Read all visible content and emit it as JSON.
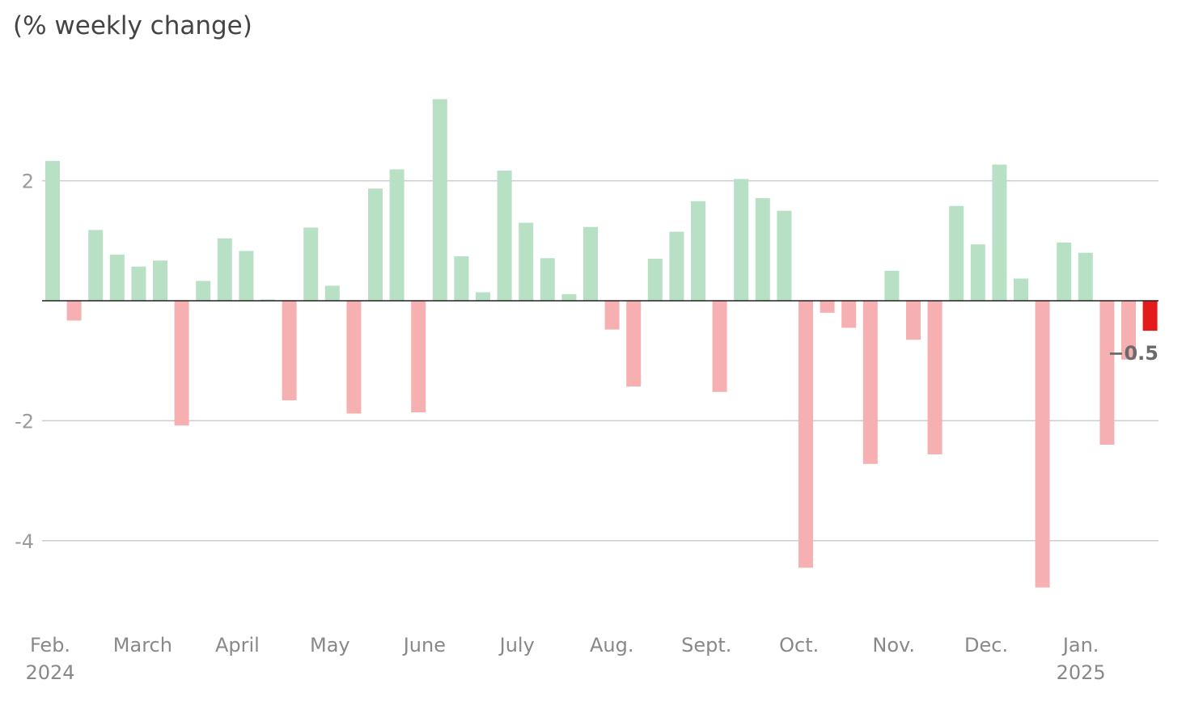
{
  "chart_data": {
    "type": "bar",
    "title": "",
    "subtitle": "(% weekly change)",
    "xlabel": "",
    "ylabel": "",
    "ylim": [
      -5.4,
      3.9
    ],
    "yticks": [
      2,
      -2,
      -4
    ],
    "grid": true,
    "colors": {
      "positive": "#b7e0c4",
      "negative": "#f6b0b2",
      "highlight": "#e31b1b",
      "zero_line": "#222222",
      "grid": "#cccccc"
    },
    "values": [
      2.33,
      -0.33,
      1.18,
      0.77,
      0.57,
      0.67,
      -2.08,
      0.33,
      1.04,
      0.83,
      0.02,
      -1.66,
      1.22,
      0.25,
      -1.88,
      1.87,
      2.19,
      -1.86,
      3.36,
      0.74,
      0.14,
      2.17,
      1.3,
      0.71,
      0.11,
      1.23,
      -0.48,
      -1.43,
      0.7,
      1.15,
      1.66,
      -1.52,
      2.03,
      1.71,
      1.5,
      -4.45,
      -0.2,
      -0.45,
      -2.72,
      0.5,
      -0.65,
      -2.56,
      1.58,
      0.94,
      2.27,
      0.37,
      -4.78,
      0.97,
      0.8,
      -2.4,
      -0.98,
      -0.5
    ],
    "highlight_index": 51,
    "data_labels": [
      {
        "index": 51,
        "text": "−0.5"
      }
    ],
    "month_labels": [
      {
        "label": "Feb.",
        "year": "2024",
        "week_index": 0
      },
      {
        "label": "March",
        "year": "",
        "week_index": 4.3
      },
      {
        "label": "April",
        "year": "",
        "week_index": 8.7
      },
      {
        "label": "May",
        "year": "",
        "week_index": 13
      },
      {
        "label": "June",
        "year": "",
        "week_index": 17.4
      },
      {
        "label": "July",
        "year": "",
        "week_index": 21.7
      },
      {
        "label": "Aug.",
        "year": "",
        "week_index": 26.1
      },
      {
        "label": "Sept.",
        "year": "",
        "week_index": 30.5
      },
      {
        "label": "Oct.",
        "year": "",
        "week_index": 34.8
      },
      {
        "label": "Nov.",
        "year": "",
        "week_index": 39.2
      },
      {
        "label": "Dec.",
        "year": "",
        "week_index": 43.5
      },
      {
        "label": "Jan.",
        "year": "2025",
        "week_index": 47.9
      }
    ]
  }
}
